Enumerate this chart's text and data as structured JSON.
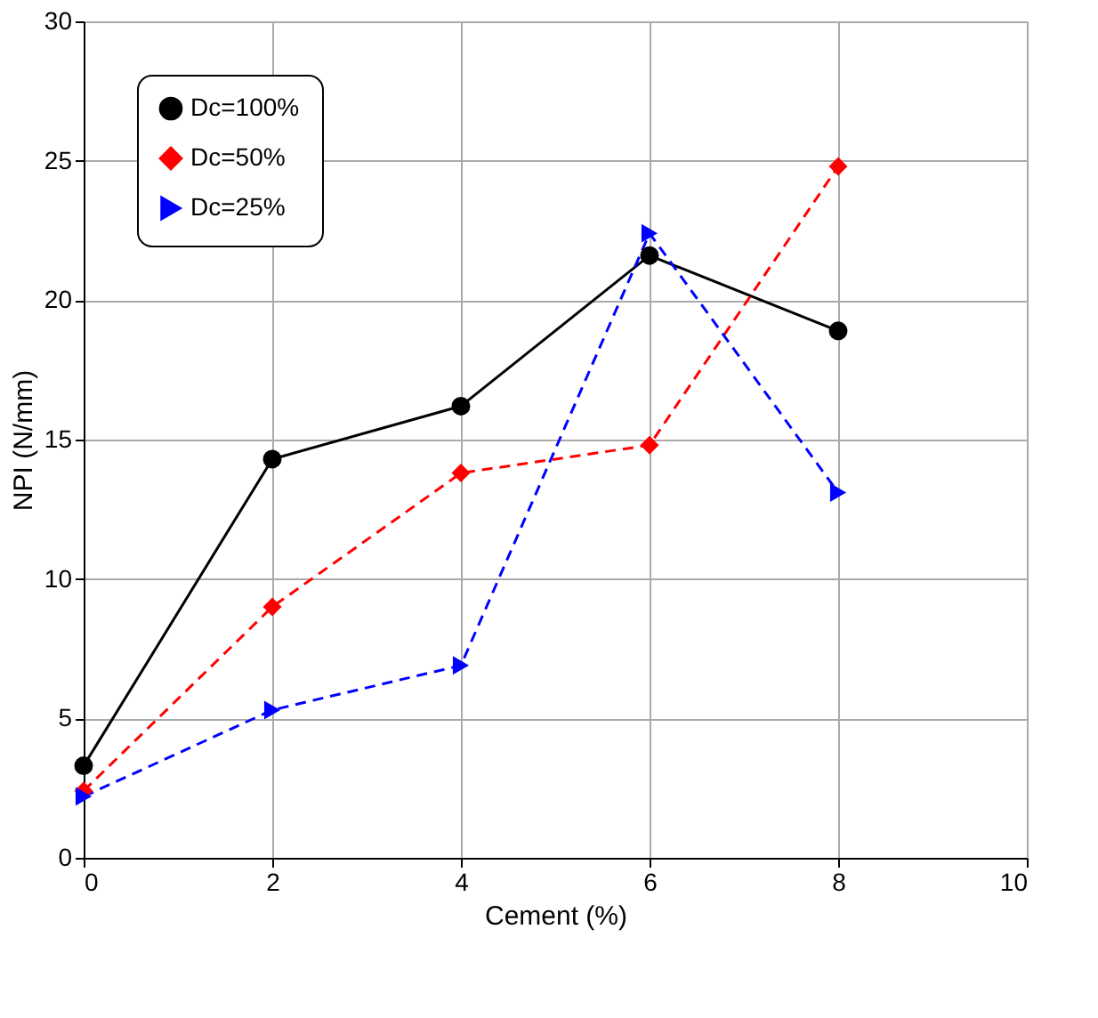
{
  "chart_data": {
    "type": "line",
    "xlabel": "Cement (%)",
    "ylabel": "NPI (N/mm)",
    "x": [
      0,
      2,
      4,
      6,
      8
    ],
    "xlim": [
      0,
      10
    ],
    "xticks": [
      0,
      2,
      4,
      6,
      8,
      10
    ],
    "ylim": [
      0,
      30
    ],
    "yticks": [
      0,
      5,
      10,
      15,
      20,
      25,
      30
    ],
    "grid": true,
    "legend": "top left",
    "series": [
      {
        "name": "Dc=100%",
        "color": "#000000",
        "marker": "circle",
        "line_style": "solid",
        "values": [
          3.3,
          14.3,
          16.2,
          21.6,
          18.9
        ]
      },
      {
        "name": "Dc=50%",
        "color": "#ff0000",
        "marker": "diamond",
        "line_style": "dashed",
        "values": [
          2.4,
          9.0,
          13.8,
          14.8,
          24.8
        ]
      },
      {
        "name": "Dc=25%",
        "color": "#0000ff",
        "marker": "triangle",
        "line_style": "dashed",
        "values": [
          2.2,
          5.3,
          6.9,
          22.4,
          13.1
        ]
      }
    ]
  }
}
